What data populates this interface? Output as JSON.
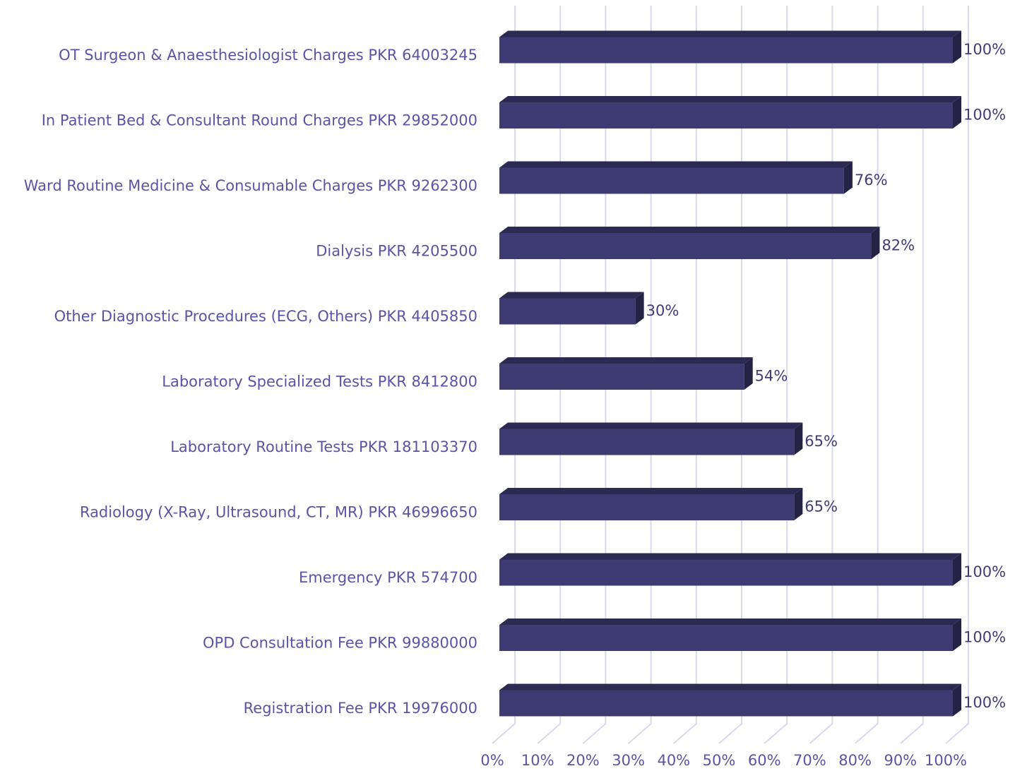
{
  "chart_data": {
    "type": "bar3d_horizontal",
    "categories": [
      "OT Surgeon & Anaesthesiologist Charges PKR 64003245",
      "In Patient Bed & Consultant Round Charges PKR 29852000",
      "Ward Routine Medicine & Consumable Charges PKR 9262300",
      "Dialysis PKR 4205500",
      "Other Diagnostic Procedures (ECG, Others) PKR 4405850",
      "Laboratory Specialized Tests PKR 8412800",
      "Laboratory Routine Tests PKR 181103370",
      "Radiology (X-Ray, Ultrasound, CT, MR) PKR 46996650",
      "Emergency PKR 574700",
      "OPD Consultation Fee PKR 99880000",
      "Registration Fee PKR 19976000"
    ],
    "values": [
      100,
      100,
      76,
      82,
      30,
      54,
      65,
      65,
      100,
      100,
      100
    ],
    "value_labels": [
      "100%",
      "100%",
      "76%",
      "82%",
      "30%",
      "54%",
      "65%",
      "65%",
      "100%",
      "100%",
      "100%"
    ],
    "color": "#3d3b72",
    "xlim": [
      0,
      100
    ],
    "xticks": [
      {
        "value": 0,
        "label": "0%"
      },
      {
        "value": 10,
        "label": "10%"
      },
      {
        "value": 20,
        "label": "20%"
      },
      {
        "value": 30,
        "label": "30%"
      },
      {
        "value": 40,
        "label": "40%"
      },
      {
        "value": 50,
        "label": "50%"
      },
      {
        "value": 60,
        "label": "60%"
      },
      {
        "value": 70,
        "label": "70%"
      },
      {
        "value": 80,
        "label": "80%"
      },
      {
        "value": 90,
        "label": "90%"
      },
      {
        "value": 100,
        "label": "100%"
      }
    ],
    "grid": true
  }
}
